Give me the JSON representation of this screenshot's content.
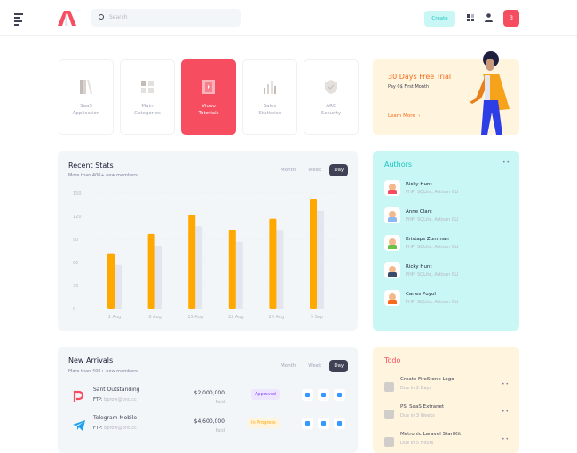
{
  "header": {
    "search_placeholder": "Search",
    "create_label": "Create",
    "notification_count": "3"
  },
  "tiles": [
    {
      "label1": "SaaS",
      "label2": "Application",
      "icon": "books-icon"
    },
    {
      "label1": "Main",
      "label2": "Categories",
      "icon": "grid-icon"
    },
    {
      "label1": "Video",
      "label2": "Tutorials",
      "icon": "film-icon",
      "active": true
    },
    {
      "label1": "Sales",
      "label2": "Statistics",
      "icon": "bar-chart-icon"
    },
    {
      "label1": "ARC",
      "label2": "Security",
      "icon": "shield-icon"
    }
  ],
  "trial": {
    "title": "30 Days Free Trial",
    "subtitle": "Pay 0$ First Month",
    "link": "Learn More"
  },
  "stats": {
    "title": "Recent Stats",
    "subtitle": "More than 400+ new members",
    "tabs": [
      "Month",
      "Week",
      "Day"
    ],
    "active_tab": "Day"
  },
  "chart_data": {
    "type": "bar",
    "categories": [
      "1 Aug",
      "8 Aug",
      "15 Aug",
      "22 Aug",
      "29 Aug",
      "5 Sep"
    ],
    "series": [
      {
        "values": [
          72,
          97,
          122,
          102,
          117,
          142
        ],
        "color": "#ffa800"
      },
      {
        "values": [
          57,
          82,
          107,
          87,
          102,
          127
        ],
        "color": "#e4e6ef"
      }
    ],
    "yticks": [
      "0",
      "30",
      "60",
      "90",
      "120",
      "150"
    ],
    "ylim": [
      0,
      150
    ],
    "grid": true
  },
  "authors": {
    "title": "Authors",
    "items": [
      {
        "name": "Ricky Hunt",
        "skills": "PHP, SQLite, Artisan CLI",
        "shirt": "#f64e60"
      },
      {
        "name": "Anne Clarc",
        "skills": "PHP, SQLite, Artisan CLI",
        "shirt": "#8bb8f0"
      },
      {
        "name": "Kristaps Zumman",
        "skills": "PHP, SQLite, Artisan CLI",
        "shirt": "#6cc04a"
      },
      {
        "name": "Ricky Hunt",
        "skills": "PHP, SQLite, Artisan CLI",
        "shirt": "#3a4a6b"
      },
      {
        "name": "Carles Puyol",
        "skills": "PHP, SQLite, Artisan CLI",
        "shirt": "#f76b1c"
      }
    ]
  },
  "arrivals": {
    "title": "New Arrivals",
    "subtitle": "More than 400+ new members",
    "tabs": [
      "Month",
      "Week",
      "Day"
    ],
    "active_tab": "Day",
    "rows": [
      {
        "name": "Sant Outstanding",
        "ftp_label": "FTP:",
        "ftp": "bprow@bnc.cc",
        "amount": "$2,000,000",
        "paid": "Paid",
        "status": "Approved",
        "status_bg": "#eee5ff",
        "status_color": "#8950fc",
        "icon": "p-logo-icon"
      },
      {
        "name": "Telegram Mobile",
        "ftp_label": "FTP:",
        "ftp": "bprow@bnc.cc",
        "amount": "$4,600,000",
        "paid": "Paid",
        "status": "In Progress",
        "status_bg": "#fff4de",
        "status_color": "#ffa800",
        "icon": "telegram-icon"
      }
    ]
  },
  "todo": {
    "title": "Todo",
    "items": [
      {
        "title": "Create FireStone Logo",
        "due": "Due in 2 Days"
      },
      {
        "title": "PSI SaaS Extranet",
        "due": "Due in 3 Weeks"
      },
      {
        "title": "Metronic Laravel StartKit",
        "due": "Due in 5 Hours"
      }
    ]
  }
}
